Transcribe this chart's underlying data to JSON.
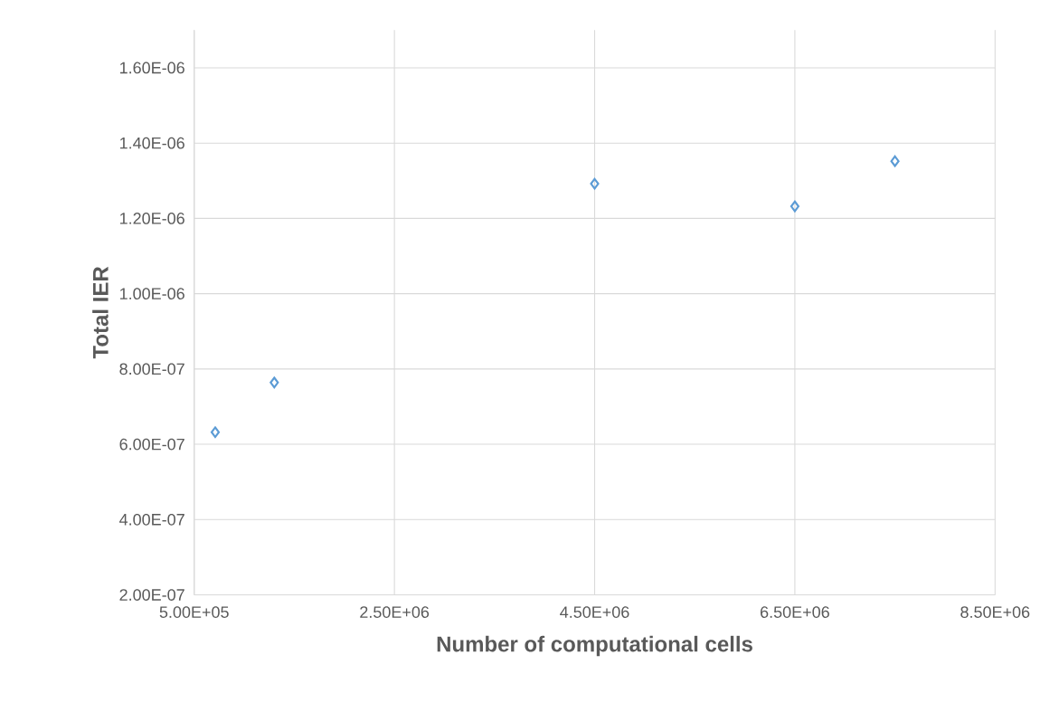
{
  "chart_data": {
    "type": "scatter",
    "xlabel": "Number of computational cells",
    "ylabel": "Total IER",
    "x": [
      710000,
      1300000,
      4500000,
      6500000,
      7500000
    ],
    "values": [
      6.32e-07,
      7.64e-07,
      1.292e-06,
      1.232e-06,
      1.352e-06
    ],
    "color": "#5b9bd5",
    "marker": "diamond",
    "xlim": [
      500000,
      8500000
    ],
    "xticks": [
      {
        "value": 500000,
        "label": "5.00E+05"
      },
      {
        "value": 2500000,
        "label": "2.50E+06"
      },
      {
        "value": 4500000,
        "label": "4.50E+06"
      },
      {
        "value": 6500000,
        "label": "6.50E+06"
      },
      {
        "value": 8500000,
        "label": "8.50E+06"
      }
    ],
    "ylim": [
      2e-07,
      1.7e-06
    ],
    "yticks": [
      {
        "value": 2e-07,
        "label": "2.00E-07"
      },
      {
        "value": 4e-07,
        "label": "4.00E-07"
      },
      {
        "value": 6e-07,
        "label": "6.00E-07"
      },
      {
        "value": 8e-07,
        "label": "8.00E-07"
      },
      {
        "value": 1e-06,
        "label": "1.00E-06"
      },
      {
        "value": 1.2e-06,
        "label": "1.20E-06"
      },
      {
        "value": 1.4e-06,
        "label": "1.40E-06"
      },
      {
        "value": 1.6e-06,
        "label": "1.60E-06"
      }
    ],
    "grid": true
  }
}
